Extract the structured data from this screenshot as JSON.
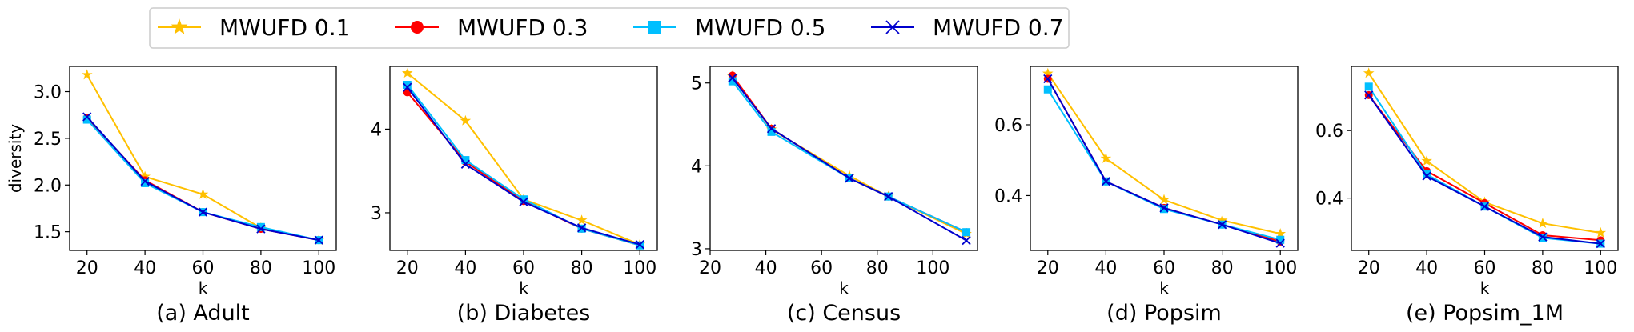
{
  "legend": [
    {
      "name": "MWUFD 0.1",
      "color": "#FFC000",
      "marker": "star"
    },
    {
      "name": "MWUFD 0.3",
      "color": "#FF0000",
      "marker": "circle"
    },
    {
      "name": "MWUFD 0.5",
      "color": "#00BFFF",
      "marker": "square"
    },
    {
      "name": "MWUFD 0.7",
      "color": "#0000CD",
      "marker": "x"
    }
  ],
  "chart_data": [
    {
      "type": "line",
      "caption": "(a) Adult",
      "xlabel": "k",
      "ylabel": "diversity",
      "xlim": [
        14,
        106
      ],
      "ylim": [
        1.3,
        3.27
      ],
      "xticks": [
        20,
        40,
        60,
        80,
        100
      ],
      "yticks": [
        1.5,
        2.0,
        2.5,
        3.0
      ],
      "ytick_labels": [
        "1.5",
        "2.0",
        "2.5",
        "3.0"
      ],
      "series": [
        {
          "name": "MWUFD 0.1",
          "x": [
            20,
            40,
            60,
            80,
            100
          ],
          "values": [
            3.18,
            2.09,
            1.9,
            1.54,
            1.41
          ]
        },
        {
          "name": "MWUFD 0.3",
          "x": [
            20,
            40,
            60,
            80,
            100
          ],
          "values": [
            2.72,
            2.05,
            1.71,
            1.53,
            1.41
          ]
        },
        {
          "name": "MWUFD 0.5",
          "x": [
            20,
            40,
            60,
            80,
            100
          ],
          "values": [
            2.7,
            2.02,
            1.71,
            1.55,
            1.41
          ]
        },
        {
          "name": "MWUFD 0.7",
          "x": [
            20,
            40,
            60,
            80,
            100
          ],
          "values": [
            2.73,
            2.04,
            1.71,
            1.53,
            1.41
          ]
        }
      ]
    },
    {
      "type": "line",
      "caption": "(b) Diabetes",
      "xlabel": "k",
      "ylabel": "",
      "xlim": [
        14,
        106
      ],
      "ylim": [
        2.55,
        4.75
      ],
      "xticks": [
        20,
        40,
        60,
        80,
        100
      ],
      "yticks": [
        3,
        4
      ],
      "ytick_labels": [
        "3",
        "4"
      ],
      "series": [
        {
          "name": "MWUFD 0.1",
          "x": [
            20,
            40,
            60,
            80,
            100
          ],
          "values": [
            4.67,
            4.1,
            3.16,
            2.91,
            2.62
          ]
        },
        {
          "name": "MWUFD 0.3",
          "x": [
            20,
            40,
            60,
            80,
            100
          ],
          "values": [
            4.44,
            3.61,
            3.14,
            2.81,
            2.61
          ]
        },
        {
          "name": "MWUFD 0.5",
          "x": [
            20,
            40,
            60,
            80,
            100
          ],
          "values": [
            4.53,
            3.63,
            3.16,
            2.81,
            2.61
          ]
        },
        {
          "name": "MWUFD 0.7",
          "x": [
            20,
            40,
            60,
            80,
            100
          ],
          "values": [
            4.5,
            3.58,
            3.13,
            2.82,
            2.62
          ]
        }
      ]
    },
    {
      "type": "line",
      "caption": "(c) Census",
      "xlabel": "k",
      "ylabel": "",
      "xlim": [
        20,
        116
      ],
      "ylim": [
        2.98,
        5.2
      ],
      "xticks": [
        20,
        40,
        60,
        80,
        100
      ],
      "yticks": [
        3,
        4,
        5
      ],
      "ytick_labels": [
        "3",
        "4",
        "5"
      ],
      "series": [
        {
          "name": "MWUFD 0.1",
          "x": [
            28,
            42,
            70,
            84,
            112
          ],
          "values": [
            5.08,
            4.44,
            3.88,
            3.63,
            3.18
          ]
        },
        {
          "name": "MWUFD 0.3",
          "x": [
            28,
            42,
            70,
            84,
            112
          ],
          "values": [
            5.09,
            4.45,
            3.85,
            3.63,
            3.2
          ]
        },
        {
          "name": "MWUFD 0.5",
          "x": [
            28,
            42,
            70,
            84,
            112
          ],
          "values": [
            5.02,
            4.41,
            3.85,
            3.63,
            3.2
          ]
        },
        {
          "name": "MWUFD 0.7",
          "x": [
            28,
            42,
            70,
            84,
            112
          ],
          "values": [
            5.06,
            4.45,
            3.85,
            3.63,
            3.1
          ]
        }
      ]
    },
    {
      "type": "line",
      "caption": "(d) Popsim",
      "xlabel": "k",
      "ylabel": "",
      "xlim": [
        14,
        106
      ],
      "ylim": [
        0.245,
        0.765
      ],
      "xticks": [
        20,
        40,
        60,
        80,
        100
      ],
      "yticks": [
        0.4,
        0.6
      ],
      "ytick_labels": [
        "0.4",
        "0.6"
      ],
      "series": [
        {
          "name": "MWUFD 0.1",
          "x": [
            20,
            40,
            60,
            80,
            100
          ],
          "values": [
            0.745,
            0.505,
            0.388,
            0.33,
            0.292
          ]
        },
        {
          "name": "MWUFD 0.3",
          "x": [
            20,
            40,
            60,
            80,
            100
          ],
          "values": [
            0.73,
            0.44,
            0.365,
            0.318,
            0.27
          ]
        },
        {
          "name": "MWUFD 0.5",
          "x": [
            20,
            40,
            60,
            80,
            100
          ],
          "values": [
            0.7,
            0.44,
            0.362,
            0.318,
            0.275
          ]
        },
        {
          "name": "MWUFD 0.7",
          "x": [
            20,
            40,
            60,
            80,
            100
          ],
          "values": [
            0.73,
            0.44,
            0.365,
            0.318,
            0.265
          ]
        }
      ]
    },
    {
      "type": "line",
      "caption": "(e) Popsim_1M",
      "xlabel": "k",
      "ylabel": "",
      "xlim": [
        14,
        106
      ],
      "ylim": [
        0.245,
        0.79
      ],
      "xticks": [
        20,
        40,
        60,
        80,
        100
      ],
      "yticks": [
        0.4,
        0.6
      ],
      "ytick_labels": [
        "0.4",
        "0.6"
      ],
      "series": [
        {
          "name": "MWUFD 0.1",
          "x": [
            20,
            40,
            60,
            80,
            100
          ],
          "values": [
            0.77,
            0.51,
            0.388,
            0.325,
            0.297
          ]
        },
        {
          "name": "MWUFD 0.3",
          "x": [
            20,
            40,
            60,
            80,
            100
          ],
          "values": [
            0.705,
            0.48,
            0.385,
            0.29,
            0.275
          ]
        },
        {
          "name": "MWUFD 0.5",
          "x": [
            20,
            40,
            60,
            80,
            100
          ],
          "values": [
            0.73,
            0.47,
            0.375,
            0.282,
            0.265
          ]
        },
        {
          "name": "MWUFD 0.7",
          "x": [
            20,
            40,
            60,
            80,
            100
          ],
          "values": [
            0.705,
            0.465,
            0.375,
            0.285,
            0.265
          ]
        }
      ]
    }
  ]
}
